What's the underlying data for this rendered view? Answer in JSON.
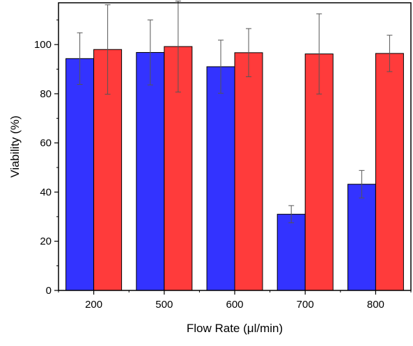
{
  "chart_data": {
    "type": "bar",
    "xlabel": "Flow Rate (μl/min)",
    "ylabel": "Viability (%)",
    "categories": [
      "200",
      "500",
      "600",
      "700",
      "800"
    ],
    "ylim": [
      0,
      117
    ],
    "yticks": [
      0,
      20,
      40,
      60,
      80,
      100
    ],
    "grid": false,
    "colors": {
      "series1": "#3333ff",
      "series2": "#ff3b3b",
      "errorbar": "#555555"
    },
    "series": [
      {
        "values": [
          94.3,
          96.8,
          91.0,
          31.0,
          43.2
        ],
        "errors": [
          10.5,
          13.2,
          10.8,
          3.5,
          5.6
        ]
      },
      {
        "values": [
          98.0,
          99.2,
          96.7,
          96.2,
          96.4
        ],
        "errors": [
          18.2,
          18.5,
          9.8,
          16.3,
          7.4
        ]
      }
    ]
  }
}
